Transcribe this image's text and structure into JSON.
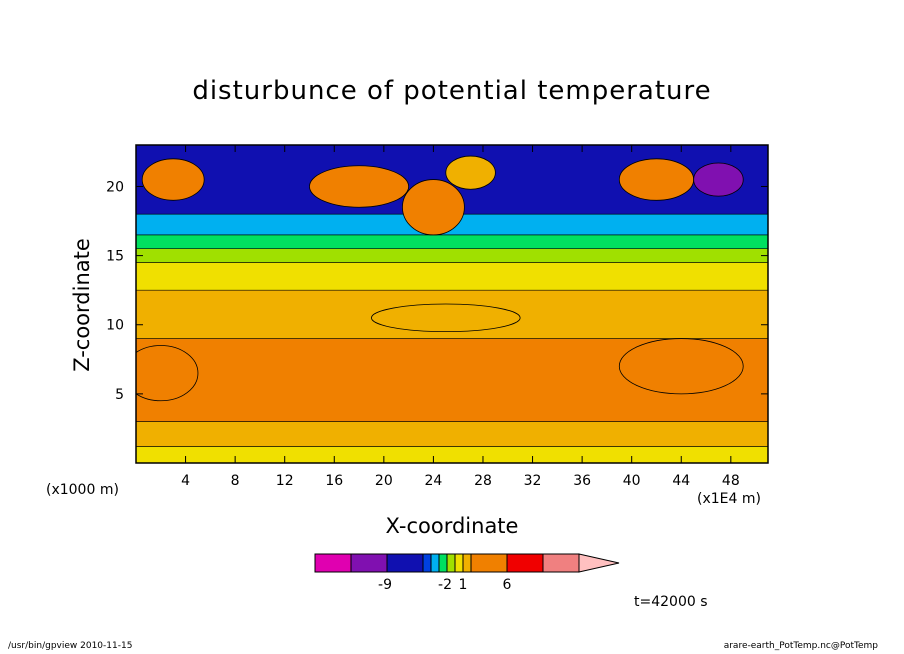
{
  "chart_data": {
    "type": "heatmap",
    "title": "disturbunce of potential temperature",
    "xlabel": "X-coordinate",
    "ylabel": "Z-coordinate",
    "x_unit_label": "(x1000 m)",
    "x_scale_label": "(x1E4 m)",
    "x_ticks": [
      "4",
      "8",
      "12",
      "16",
      "20",
      "24",
      "28",
      "32",
      "36",
      "40",
      "44",
      "48"
    ],
    "y_ticks": [
      "5",
      "10",
      "15",
      "20"
    ],
    "xlim": [
      0,
      51
    ],
    "ylim": [
      0,
      23
    ],
    "annotation": "t=42000 s",
    "colorbar": {
      "colors": [
        "#e000b0",
        "#8010b0",
        "#1010b0",
        "#0040e0",
        "#00b0f0",
        "#00e060",
        "#a0e000",
        "#f0e000",
        "#f0b000",
        "#f08000",
        "#f00000",
        "#f08080",
        "#ffc0c0"
      ],
      "tick_labels": [
        "-9",
        "-2",
        "1",
        "6"
      ]
    },
    "bands": [
      {
        "z": [
          0,
          1.2
        ],
        "color": "#f0e000"
      },
      {
        "z": [
          1.2,
          3
        ],
        "color": "#f0b000"
      },
      {
        "z": [
          3,
          9
        ],
        "color": "#f08000"
      },
      {
        "z": [
          9,
          12.5
        ],
        "color": "#f0b000"
      },
      {
        "z": [
          12.5,
          14.5
        ],
        "color": "#f0e000"
      },
      {
        "z": [
          14.5,
          15.5
        ],
        "color": "#a0e000"
      },
      {
        "z": [
          15.5,
          16.5
        ],
        "color": "#00e060"
      },
      {
        "z": [
          16.5,
          18
        ],
        "color": "#00b0f0"
      },
      {
        "z": [
          18,
          23
        ],
        "color": "#1010b0"
      }
    ],
    "blobs": [
      {
        "x": 3,
        "z": 20.5,
        "rx": 2.5,
        "rz": 1.5,
        "color": "#f08000"
      },
      {
        "x": 18,
        "z": 20,
        "rx": 4,
        "rz": 1.5,
        "color": "#f08000"
      },
      {
        "x": 24,
        "z": 18.5,
        "rx": 2.5,
        "rz": 2,
        "color": "#f08000"
      },
      {
        "x": 42,
        "z": 20.5,
        "rx": 3,
        "rz": 1.5,
        "color": "#f08000"
      },
      {
        "x": 47,
        "z": 20.5,
        "rx": 2,
        "rz": 1.2,
        "color": "#8010b0"
      },
      {
        "x": 27,
        "z": 21,
        "rx": 2,
        "rz": 1.2,
        "color": "#f0b000"
      },
      {
        "x": 2,
        "z": 6.5,
        "rx": 3,
        "rz": 2,
        "color": "#f08000"
      },
      {
        "x": 44,
        "z": 7,
        "rx": 5,
        "rz": 2,
        "color": "#f08000"
      },
      {
        "x": 25,
        "z": 10.5,
        "rx": 6,
        "rz": 1,
        "color": "#f0b000"
      }
    ]
  },
  "footer": {
    "left": "/usr/bin/gpview   2010-11-15",
    "right": "arare-earth_PotTemp.nc@PotTemp"
  }
}
